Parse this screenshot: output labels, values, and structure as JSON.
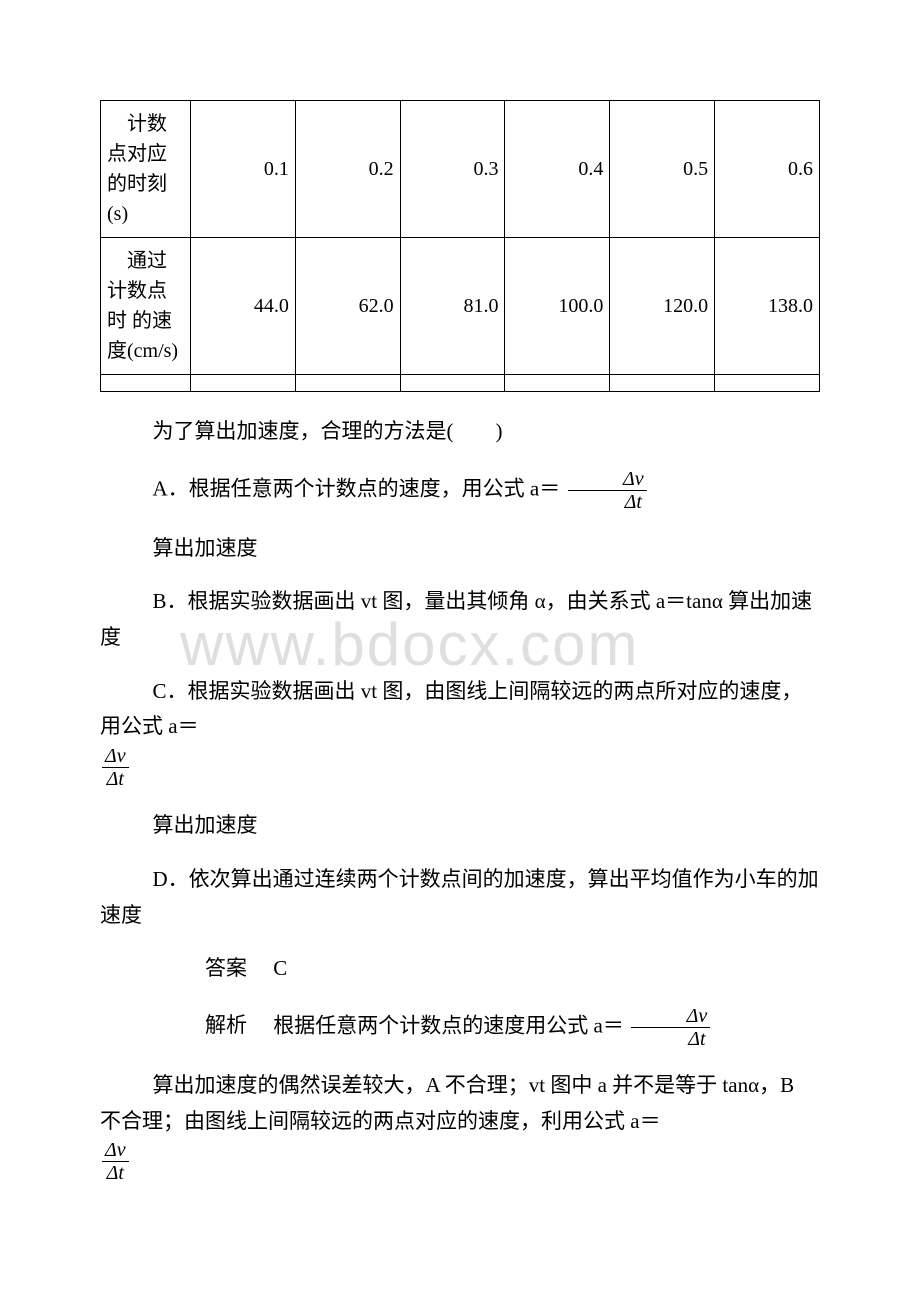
{
  "table": {
    "headers": [
      "计数点对应的时刻(s)",
      "通过计数点时\n的速度(cm/s)"
    ],
    "times": [
      "0.1",
      "0.2",
      "0.3",
      "0.4",
      "0.5",
      "0.6"
    ],
    "speeds": [
      "44.0",
      "62.0",
      "81.0",
      "100.0",
      "120.0",
      "138.0"
    ]
  },
  "question": "为了算出加速度，合理的方法是(　　)",
  "options": {
    "A_pre": "A．根据任意两个计数点的速度，用公式 a＝",
    "A_post": "算出加速度",
    "B": "B．根据实验数据画出 vt 图，量出其倾角 α，由关系式 a＝tanα 算出加速度",
    "C_pre": "C．根据实验数据画出 vt 图，由图线上间隔较远的两点所对应的速度，用公式 a＝",
    "C_post": "算出加速度",
    "D": "D．依次算出通过连续两个计数点间的加速度，算出平均值作为小车的加速度"
  },
  "answer_label": "答案",
  "answer": "C",
  "explain_label": "解析",
  "explain_pre": "根据任意两个计数点的速度用公式 a＝",
  "explain_mid": "算出加速度的偶然误差较大，A 不合理；vt 图中 a 并不是等于 tanα，B 不合理；由图线上间隔较远的两点对应的速度，利用公式 a＝",
  "frac": {
    "num": "Δv",
    "den": "Δt"
  },
  "watermark": "www.bdocx.com"
}
